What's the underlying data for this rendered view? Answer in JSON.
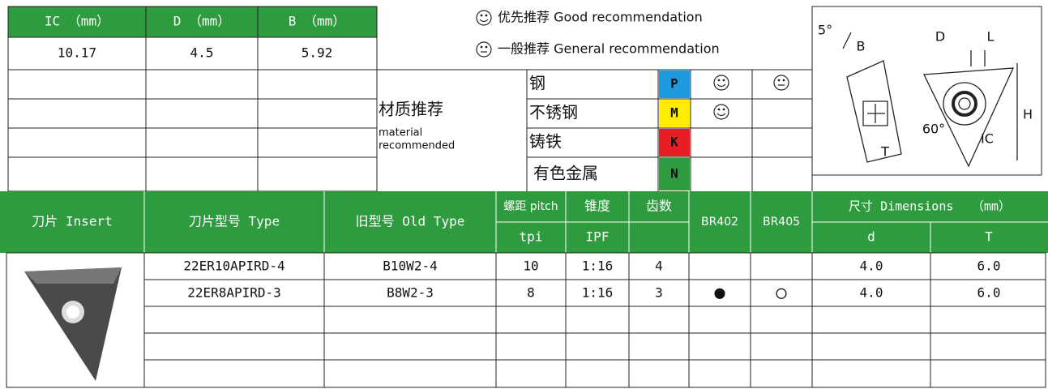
{
  "spec": {
    "headers": [
      "IC （mm）",
      "D （mm）",
      "B （mm）"
    ],
    "values": [
      "10.17",
      "4.5",
      "5.92"
    ]
  },
  "legend": {
    "good": "优先推荐 Good recommendation",
    "general": "一般推荐 General recommendation"
  },
  "material": {
    "title": "材质推荐",
    "subtitle": [
      "material",
      "recommended"
    ],
    "rows": [
      {
        "name": "钢",
        "code": "P"
      },
      {
        "name": "不锈钢",
        "code": "M"
      },
      {
        "name": "铸铁",
        "code": "K"
      },
      {
        "name": "有色金属",
        "code": "N"
      }
    ]
  },
  "diagram": {
    "labels": [
      "5°",
      "B",
      "D",
      "L",
      "H",
      "60°",
      "IC",
      "T"
    ]
  },
  "table": {
    "headers": {
      "insert": "刀片 Insert",
      "type": "刀片型号 Type",
      "old_type": "旧型号 Old Type",
      "pitch": "螺距 pitch",
      "taper": "锥度",
      "teeth": "齿数",
      "br402": "BR402",
      "br405": "BR405",
      "dimensions": "尺寸 Dimensions　　（mm）",
      "tpi": "tpi",
      "ipf": "IPF",
      "d": "d",
      "t": "T"
    },
    "rows": [
      {
        "type": "22ER10APIRD-4",
        "old_type": "B10W2-4",
        "tpi": "10",
        "ipf": "1:16",
        "teeth": "4",
        "d": "4.0",
        "t": "6.0"
      },
      {
        "type": "22ER8APIRD-3",
        "old_type": "B8W2-3",
        "tpi": "8",
        "ipf": "1:16",
        "teeth": "3",
        "br402": "●",
        "br405": "○",
        "d": "4.0",
        "t": "6.0"
      }
    ]
  }
}
